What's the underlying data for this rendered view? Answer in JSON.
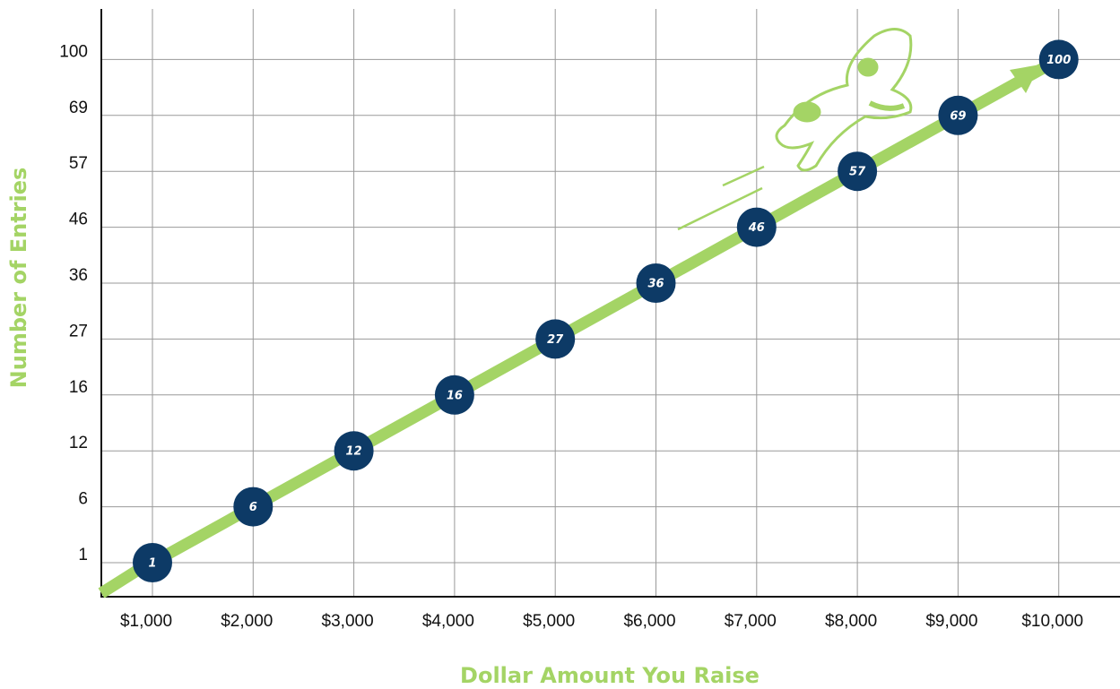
{
  "chart_data": {
    "type": "line",
    "x_title": "Dollar Amount You Raise",
    "y_title": "Number of Entries",
    "categories": [
      "$1,000",
      "$2,000",
      "$3,000",
      "$4,000",
      "$5,000",
      "$6,000",
      "$7,000",
      "$8,000",
      "$9,000",
      "$10,000"
    ],
    "values": [
      1,
      6,
      12,
      16,
      27,
      36,
      46,
      57,
      69,
      100
    ],
    "y_scale": "ordinal",
    "yticks": [
      1,
      6,
      12,
      16,
      27,
      36,
      46,
      57,
      69,
      100
    ],
    "grid": true,
    "color": "#a4d465",
    "marker_color": "#0d3a66"
  }
}
